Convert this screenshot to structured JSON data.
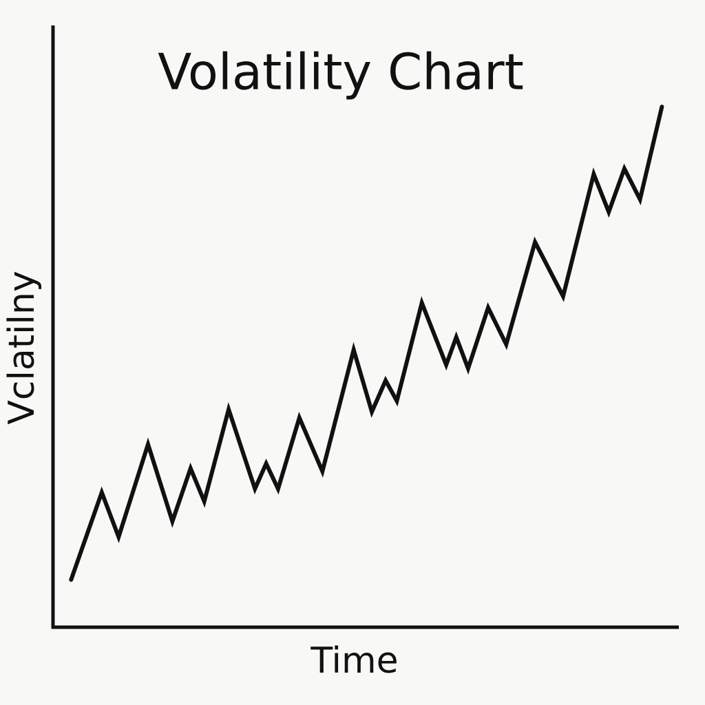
{
  "chart_data": {
    "type": "line",
    "title": "Volatility Chart",
    "x_label": "Time",
    "y_label": "Vclatilny",
    "x": [
      2.9,
      7.8,
      10.5,
      15.2,
      19.1,
      22.0,
      24.2,
      28.1,
      32.3,
      34.1,
      36.0,
      39.4,
      43.1,
      48.1,
      51.0,
      53.2,
      55.0,
      59.0,
      62.9,
      64.5,
      66.4,
      69.6,
      72.5,
      77.1,
      81.6,
      86.5,
      88.9,
      91.4,
      93.9,
      97.4
    ],
    "values": [
      7.9,
      22.4,
      15.0,
      30.4,
      17.6,
      26.4,
      20.9,
      36.2,
      23.0,
      27.2,
      23.0,
      34.8,
      25.9,
      46.1,
      35.8,
      41.0,
      37.6,
      53.9,
      43.6,
      48.2,
      43.0,
      53.1,
      47.0,
      64.0,
      55.0,
      75.3,
      69.0,
      76.2,
      71.1,
      86.5
    ],
    "color": "#111111",
    "xlim": [
      0,
      100
    ],
    "ylim": [
      0,
      100
    ]
  }
}
